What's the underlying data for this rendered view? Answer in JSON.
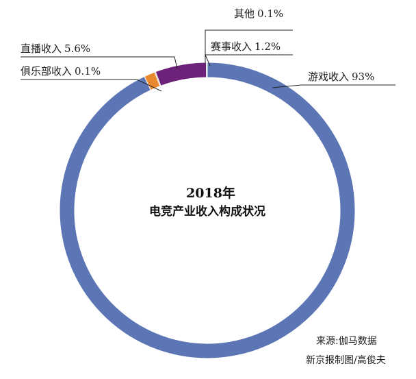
{
  "chart_data": {
    "type": "pie",
    "variant": "donut",
    "title": "2018年",
    "subtitle": "电竞产业收入构成状况",
    "categories": [
      "游戏收入",
      "赛事收入",
      "其他",
      "直播收入",
      "俱乐部收入"
    ],
    "values": [
      93,
      1.2,
      0.1,
      5.6,
      0.1
    ],
    "value_labels": [
      "93%",
      "1.2%",
      "0.1%",
      "5.6%",
      "0.1%"
    ],
    "slice_colors": [
      "#5b75b5",
      "#e8892f",
      "#b54a2c",
      "#6b2278",
      "#46b0a0"
    ],
    "legend": "none",
    "start_angle_deg": 0,
    "direction": "clockwise"
  },
  "source": {
    "line1": "来源:伽马数据",
    "line2": "新京报制图/高俊夫"
  }
}
